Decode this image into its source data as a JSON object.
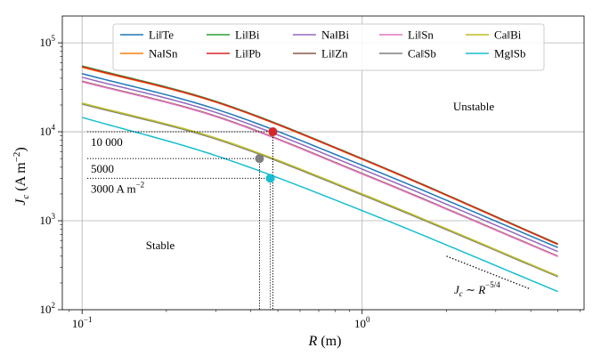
{
  "chart_data": {
    "type": "line",
    "title": "",
    "x_scale": "log",
    "y_scale": "log",
    "xlim": [
      0.085,
      6.2
    ],
    "ylim": [
      100,
      200000
    ],
    "grid": true,
    "legend_placement": "top-center",
    "legend_columns": 5,
    "x_ticks": [
      {
        "value": 0.1,
        "mantissa": "10",
        "exponent": "−1"
      },
      {
        "value": 1,
        "mantissa": "10",
        "exponent": "0"
      }
    ],
    "y_ticks": [
      {
        "value": 100,
        "mantissa": "10",
        "exponent": "2"
      },
      {
        "value": 1000,
        "mantissa": "10",
        "exponent": "3"
      },
      {
        "value": 10000,
        "mantissa": "10",
        "exponent": "4"
      },
      {
        "value": 100000,
        "mantissa": "10",
        "exponent": "5"
      }
    ],
    "xlabel": {
      "symbol": "R",
      "unit": " (m)"
    },
    "ylabel": {
      "symbol": "J",
      "subscript": "c",
      "unit_before": " (A m",
      "unit_exp": "−2",
      "unit_after": ")"
    },
    "series": [
      {
        "name": "Li‖Te",
        "color": "#1f77b4",
        "x": [
          0.1,
          0.3,
          1,
          5
        ],
        "y": [
          45000,
          18000,
          4200,
          500
        ]
      },
      {
        "name": "Na‖Sn",
        "color": "#ff7f0e",
        "x": [
          0.1,
          0.3,
          1,
          5
        ],
        "y": [
          53000,
          21500,
          4900,
          540
        ]
      },
      {
        "name": "Li‖Bi",
        "color": "#2ca02c",
        "x": [
          0.1,
          0.3,
          1,
          5
        ],
        "y": [
          55000,
          22000,
          5000,
          550
        ]
      },
      {
        "name": "Li‖Pb",
        "color": "#d62728",
        "x": [
          0.1,
          0.3,
          1,
          5
        ],
        "y": [
          54000,
          21700,
          4950,
          545
        ]
      },
      {
        "name": "Na‖Bi",
        "color": "#9467bd",
        "x": [
          0.1,
          0.3,
          1,
          5
        ],
        "y": [
          41000,
          16500,
          3800,
          450
        ]
      },
      {
        "name": "Li‖Zn",
        "color": "#8c564b",
        "x": [
          0.1,
          0.3,
          1,
          5
        ],
        "y": [
          37000,
          15000,
          3400,
          400
        ]
      },
      {
        "name": "Li‖Sn",
        "color": "#e377c2",
        "x": [
          0.1,
          0.3,
          1,
          5
        ],
        "y": [
          36500,
          14800,
          3350,
          395
        ]
      },
      {
        "name": "Ca‖Sb",
        "color": "#7f7f7f",
        "x": [
          0.1,
          0.3,
          1,
          5
        ],
        "y": [
          20500,
          8300,
          1950,
          235
        ]
      },
      {
        "name": "Ca‖Bi",
        "color": "#bcbd22",
        "x": [
          0.1,
          0.3,
          1,
          5
        ],
        "y": [
          21000,
          8500,
          2000,
          240
        ]
      },
      {
        "name": "Mg‖Sb",
        "color": "#17becf",
        "x": [
          0.1,
          0.3,
          1,
          5
        ],
        "y": [
          14500,
          5400,
          1300,
          160
        ]
      }
    ],
    "critical_points": [
      {
        "x": 0.48,
        "y": 10000,
        "color": "#d62728",
        "label": "10 000"
      },
      {
        "x": 0.43,
        "y": 5000,
        "color": "#7f7f7f",
        "label": "5000"
      },
      {
        "x": 0.47,
        "y": 3000,
        "color": "#17becf",
        "label": "3000 A m",
        "label_exp": "−2"
      }
    ],
    "annotations": {
      "unstable": "Unstable",
      "stable": "Stable",
      "slope_symbol": "J",
      "slope_subscript": "c",
      "slope_mid": " ∼ ",
      "slope_var": "R",
      "slope_exp": "−5/4",
      "slope_line": {
        "x": [
          2.0,
          4.0
        ],
        "y": [
          400,
          170
        ]
      }
    }
  }
}
